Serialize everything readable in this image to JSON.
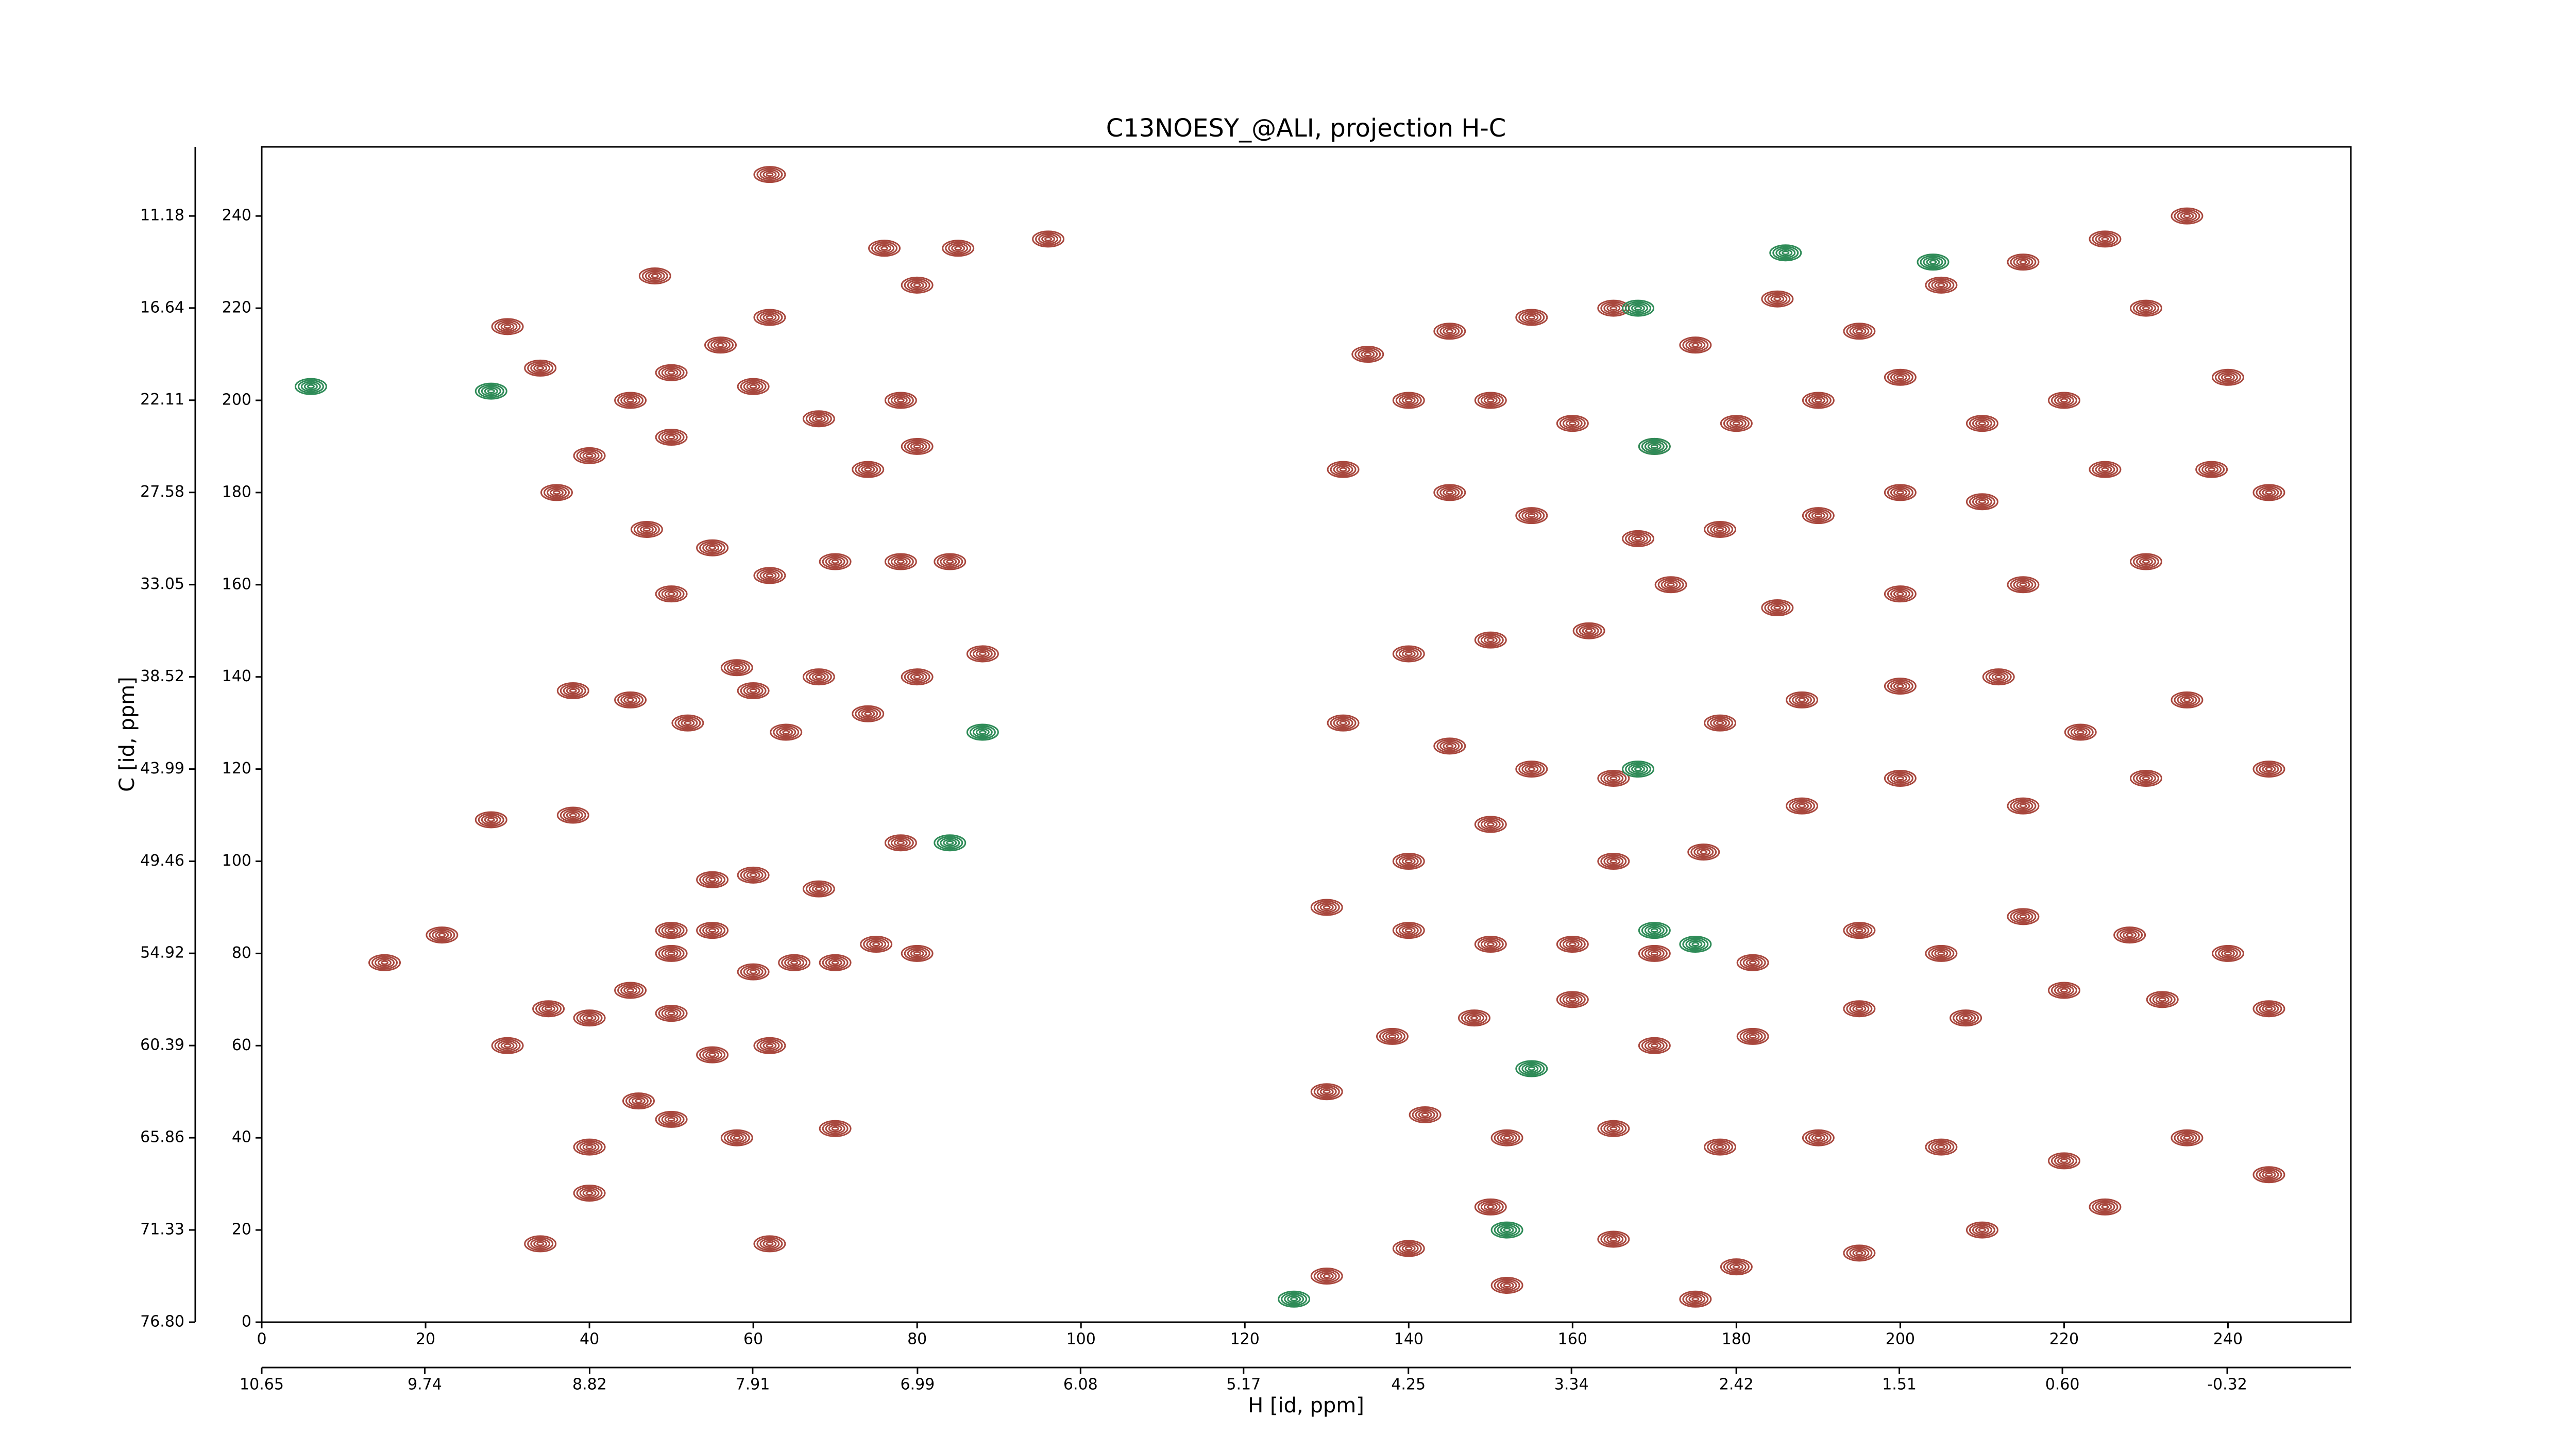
{
  "chart_data": {
    "type": "contour",
    "title": "C13NOESY_@ALI, projection H-C",
    "xlabel": "H [id, ppm]",
    "ylabel": "C [id, ppm]",
    "xlim": [
      0,
      255
    ],
    "ylim": [
      0,
      255
    ],
    "xticks": [
      0,
      20,
      40,
      60,
      80,
      100,
      120,
      140,
      160,
      180,
      200,
      220,
      240
    ],
    "yticks": [
      0,
      20,
      40,
      60,
      80,
      100,
      120,
      140,
      160,
      180,
      200,
      220,
      240
    ],
    "x2lim": [
      10.65,
      -1.01
    ],
    "x2ticks": [
      10.65,
      9.74,
      8.82,
      7.91,
      6.99,
      6.08,
      5.17,
      4.25,
      3.34,
      2.42,
      1.51,
      {
        "value": 0.6,
        "label": "0.60"
      },
      -0.32
    ],
    "y2lim": [
      76.8,
      7.08
    ],
    "y2ticks": [
      {
        "value": 76.8,
        "label": "76.80"
      },
      71.33,
      65.86,
      60.39,
      54.92,
      49.46,
      43.99,
      38.52,
      33.05,
      27.58,
      22.11,
      16.64,
      11.18
    ],
    "series": [
      {
        "color": "#a8473d",
        "x": [
          30,
          34,
          45,
          50,
          56,
          62,
          60,
          68,
          78,
          80,
          74,
          50,
          40,
          36,
          47,
          55,
          62,
          50,
          70,
          78,
          84,
          88,
          58,
          38,
          45,
          52,
          60,
          68,
          74,
          80,
          64,
          62,
          76,
          85,
          80,
          96,
          48,
          28,
          38,
          55,
          60,
          68,
          78,
          50,
          50,
          55,
          60,
          65,
          70,
          75,
          80,
          45,
          40,
          50,
          55,
          62,
          30,
          35,
          46,
          50,
          40,
          58,
          70,
          34,
          62,
          40,
          22,
          15,
          135,
          145,
          155,
          165,
          175,
          185,
          195,
          205,
          215,
          225,
          235,
          230,
          240,
          220,
          210,
          200,
          190,
          180,
          170,
          160,
          150,
          140,
          132,
          145,
          155,
          168,
          178,
          190,
          200,
          210,
          225,
          238,
          245,
          230,
          215,
          200,
          185,
          172,
          162,
          150,
          140,
          132,
          145,
          155,
          165,
          178,
          188,
          200,
          212,
          222,
          235,
          245,
          230,
          215,
          200,
          188,
          176,
          165,
          150,
          140,
          130,
          140,
          150,
          160,
          170,
          182,
          195,
          205,
          215,
          228,
          240,
          245,
          232,
          220,
          208,
          195,
          182,
          170,
          160,
          148,
          138,
          130,
          142,
          152,
          165,
          178,
          190,
          205,
          220,
          235,
          245,
          225,
          210,
          195,
          180,
          165,
          150,
          140,
          130,
          152,
          175
        ],
        "y": [
          216,
          207,
          200,
          206,
          212,
          218,
          203,
          196,
          200,
          190,
          185,
          192,
          188,
          180,
          172,
          168,
          162,
          158,
          165,
          165,
          165,
          145,
          142,
          137,
          135,
          130,
          137,
          140,
          132,
          140,
          128,
          249,
          233,
          233,
          225,
          235,
          227,
          109,
          110,
          96,
          97,
          94,
          104,
          85,
          80,
          85,
          76,
          78,
          78,
          82,
          80,
          72,
          66,
          67,
          58,
          60,
          60,
          68,
          48,
          44,
          38,
          40,
          42,
          17,
          17,
          28,
          84,
          78,
          210,
          215,
          218,
          220,
          212,
          222,
          215,
          225,
          230,
          235,
          240,
          220,
          205,
          200,
          195,
          205,
          200,
          195,
          190,
          195,
          200,
          200,
          185,
          180,
          175,
          170,
          172,
          175,
          180,
          178,
          185,
          185,
          180,
          165,
          160,
          158,
          155,
          160,
          150,
          148,
          145,
          130,
          125,
          120,
          118,
          130,
          135,
          138,
          140,
          128,
          135,
          120,
          118,
          112,
          118,
          112,
          102,
          100,
          108,
          100,
          90,
          85,
          82,
          82,
          80,
          78,
          85,
          80,
          88,
          84,
          80,
          68,
          70,
          72,
          66,
          68,
          62,
          60,
          70,
          66,
          62,
          50,
          45,
          40,
          42,
          38,
          40,
          38,
          35,
          40,
          32,
          25,
          20,
          15,
          12,
          18,
          25,
          16,
          10,
          8,
          5
        ]
      },
      {
        "color": "#2e8b57",
        "x": [
          28,
          84,
          88,
          168,
          170,
          168,
          170,
          175,
          155,
          152,
          126,
          186,
          204,
          6
        ],
        "y": [
          202,
          104,
          128,
          220,
          190,
          120,
          85,
          82,
          55,
          20,
          5,
          232,
          230,
          203
        ]
      }
    ]
  }
}
